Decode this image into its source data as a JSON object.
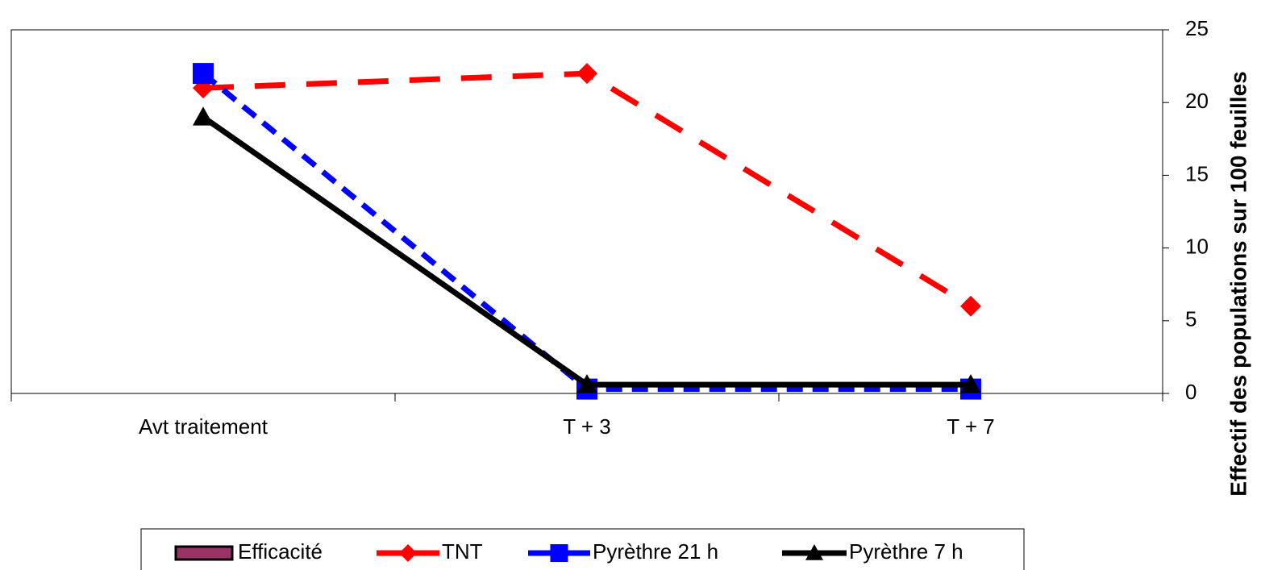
{
  "chart_data": {
    "type": "line",
    "categories": [
      "Avt traitement",
      "T + 3",
      "T + 7"
    ],
    "series": [
      {
        "name": "Efficacité",
        "color": "#993366",
        "type": "bar",
        "values": [
          null,
          null,
          null
        ]
      },
      {
        "name": "TNT",
        "color": "#ff0000",
        "marker": "diamond",
        "dash": "38 26",
        "values": [
          21,
          22,
          6
        ]
      },
      {
        "name": "Pyrèthre 21 h",
        "color": "#0000ff",
        "marker": "square",
        "dash": "20 12",
        "values": [
          22,
          0.3,
          0.3
        ]
      },
      {
        "name": "Pyrèthre 7 h",
        "color": "#000000",
        "marker": "triangle",
        "values": [
          19,
          0.6,
          0.6
        ]
      }
    ],
    "y_label": "Effectif des populations sur 100 feuilles",
    "ylim": [
      0,
      25
    ],
    "yticks": [
      0,
      5,
      10,
      15,
      20,
      25
    ],
    "y_axis_side": "right",
    "grid": false
  }
}
